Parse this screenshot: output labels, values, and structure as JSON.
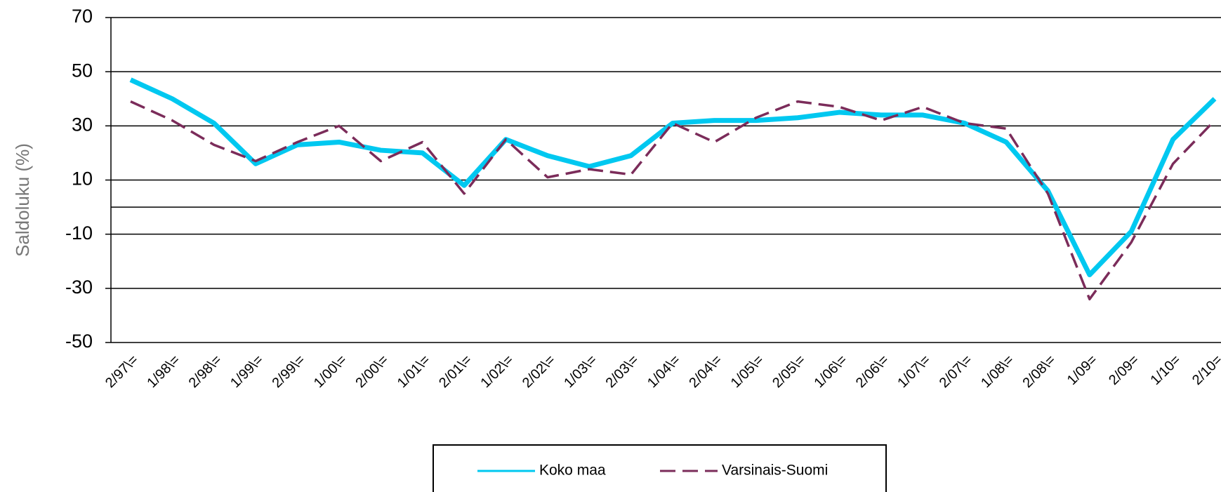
{
  "chart_data": {
    "type": "line",
    "y_label": "Saldoluku (%)",
    "categories": [
      "2/97\\=",
      "1/98\\=",
      "2/98\\=",
      "1/99\\=",
      "2/99\\=",
      "1/00\\=",
      "2/00\\=",
      "1/01\\=",
      "2/01\\=",
      "1/02\\=",
      "2/02\\=",
      "1/03\\=",
      "2/03\\=",
      "1/04\\=",
      "2/04\\=",
      "1/05\\=",
      "2/05\\=",
      "1/06\\=",
      "2/06\\=",
      "1/07\\=",
      "2/07\\=",
      "1/08\\=",
      "2/08\\=",
      "1/09=",
      "2/09=",
      "1/10=",
      "2/10="
    ],
    "series": [
      {
        "name": "Koko maa",
        "color": "#00c8f0",
        "values": [
          47,
          40,
          31,
          16,
          23,
          24,
          21,
          20,
          8,
          25,
          19,
          15,
          19,
          31,
          32,
          32,
          33,
          35,
          34,
          34,
          31,
          24,
          6,
          -25,
          -9,
          25,
          40
        ]
      },
      {
        "name": "Varsinais-Suomi",
        "color": "#7b2c5a",
        "values": [
          39,
          32,
          23,
          17,
          24,
          30,
          17,
          24,
          5,
          25,
          11,
          14,
          12,
          31,
          24,
          33,
          39,
          37,
          32,
          37,
          31,
          29,
          5,
          -34,
          -13,
          16,
          32
        ]
      }
    ],
    "ylim": [
      -50,
      70
    ],
    "yticks": [
      -50,
      -30,
      -10,
      10,
      30,
      50,
      70
    ],
    "grid": true,
    "legend": "bottom"
  }
}
